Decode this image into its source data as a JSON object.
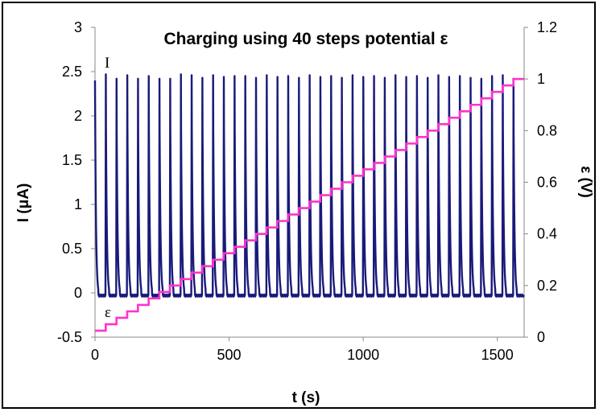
{
  "chart_data": {
    "type": "line",
    "title": "Charging using 40 steps potential ε",
    "xlabel": "t (s)",
    "ylabel_left": "I (μA)",
    "ylabel_right": "ε (V)",
    "xlim": [
      0,
      1600
    ],
    "ylim_left": [
      -0.5,
      3
    ],
    "ylim_right": [
      0,
      1.2
    ],
    "x_ticks": [
      "0",
      "500",
      "1000",
      "1500"
    ],
    "y_left_ticks": [
      "-0.5",
      "0",
      "0.5",
      "1",
      "1.5",
      "2",
      "2.5",
      "3"
    ],
    "y_right_ticks": [
      "0",
      "0.2",
      "0.4",
      "0.6",
      "0.8",
      "1",
      "1.2"
    ],
    "grid": false,
    "series": [
      {
        "name": "I",
        "axis": "left",
        "color": "#1a1a7a",
        "step_times": [
          0,
          40,
          80,
          120,
          160,
          200,
          240,
          280,
          320,
          360,
          400,
          440,
          480,
          520,
          560,
          600,
          640,
          680,
          720,
          760,
          800,
          840,
          880,
          920,
          960,
          1000,
          1040,
          1080,
          1120,
          1160,
          1200,
          1240,
          1280,
          1320,
          1360,
          1400,
          1440,
          1480,
          1520,
          1560
        ],
        "peak_values": [
          2.4,
          2.47,
          2.42,
          2.46,
          2.42,
          2.45,
          2.42,
          2.42,
          2.47,
          2.46,
          2.43,
          2.46,
          2.44,
          2.45,
          2.45,
          2.43,
          2.46,
          2.44,
          2.45,
          2.43,
          2.46,
          2.44,
          2.45,
          2.43,
          2.46,
          2.44,
          2.45,
          2.43,
          2.46,
          2.44,
          2.45,
          2.43,
          2.46,
          2.44,
          2.45,
          2.43,
          2.42,
          2.45,
          2.46,
          2.42
        ],
        "baseline_value": -0.03,
        "decay_time_constant": 3.5
      },
      {
        "name": "ε",
        "axis": "right",
        "color": "#ff33cc",
        "step_times": [
          0,
          40,
          80,
          120,
          160,
          200,
          240,
          280,
          320,
          360,
          400,
          440,
          480,
          520,
          560,
          600,
          640,
          680,
          720,
          760,
          800,
          840,
          880,
          920,
          960,
          1000,
          1040,
          1080,
          1120,
          1160,
          1200,
          1240,
          1280,
          1320,
          1360,
          1400,
          1440,
          1480,
          1520,
          1560
        ],
        "step_values": [
          0.025,
          0.05,
          0.075,
          0.1,
          0.125,
          0.15,
          0.175,
          0.2,
          0.225,
          0.25,
          0.275,
          0.3,
          0.325,
          0.35,
          0.375,
          0.4,
          0.425,
          0.45,
          0.475,
          0.5,
          0.525,
          0.55,
          0.575,
          0.6,
          0.625,
          0.65,
          0.675,
          0.7,
          0.725,
          0.75,
          0.775,
          0.8,
          0.825,
          0.85,
          0.875,
          0.9,
          0.925,
          0.95,
          0.975,
          1.0
        ],
        "end_time": 1600
      }
    ]
  }
}
